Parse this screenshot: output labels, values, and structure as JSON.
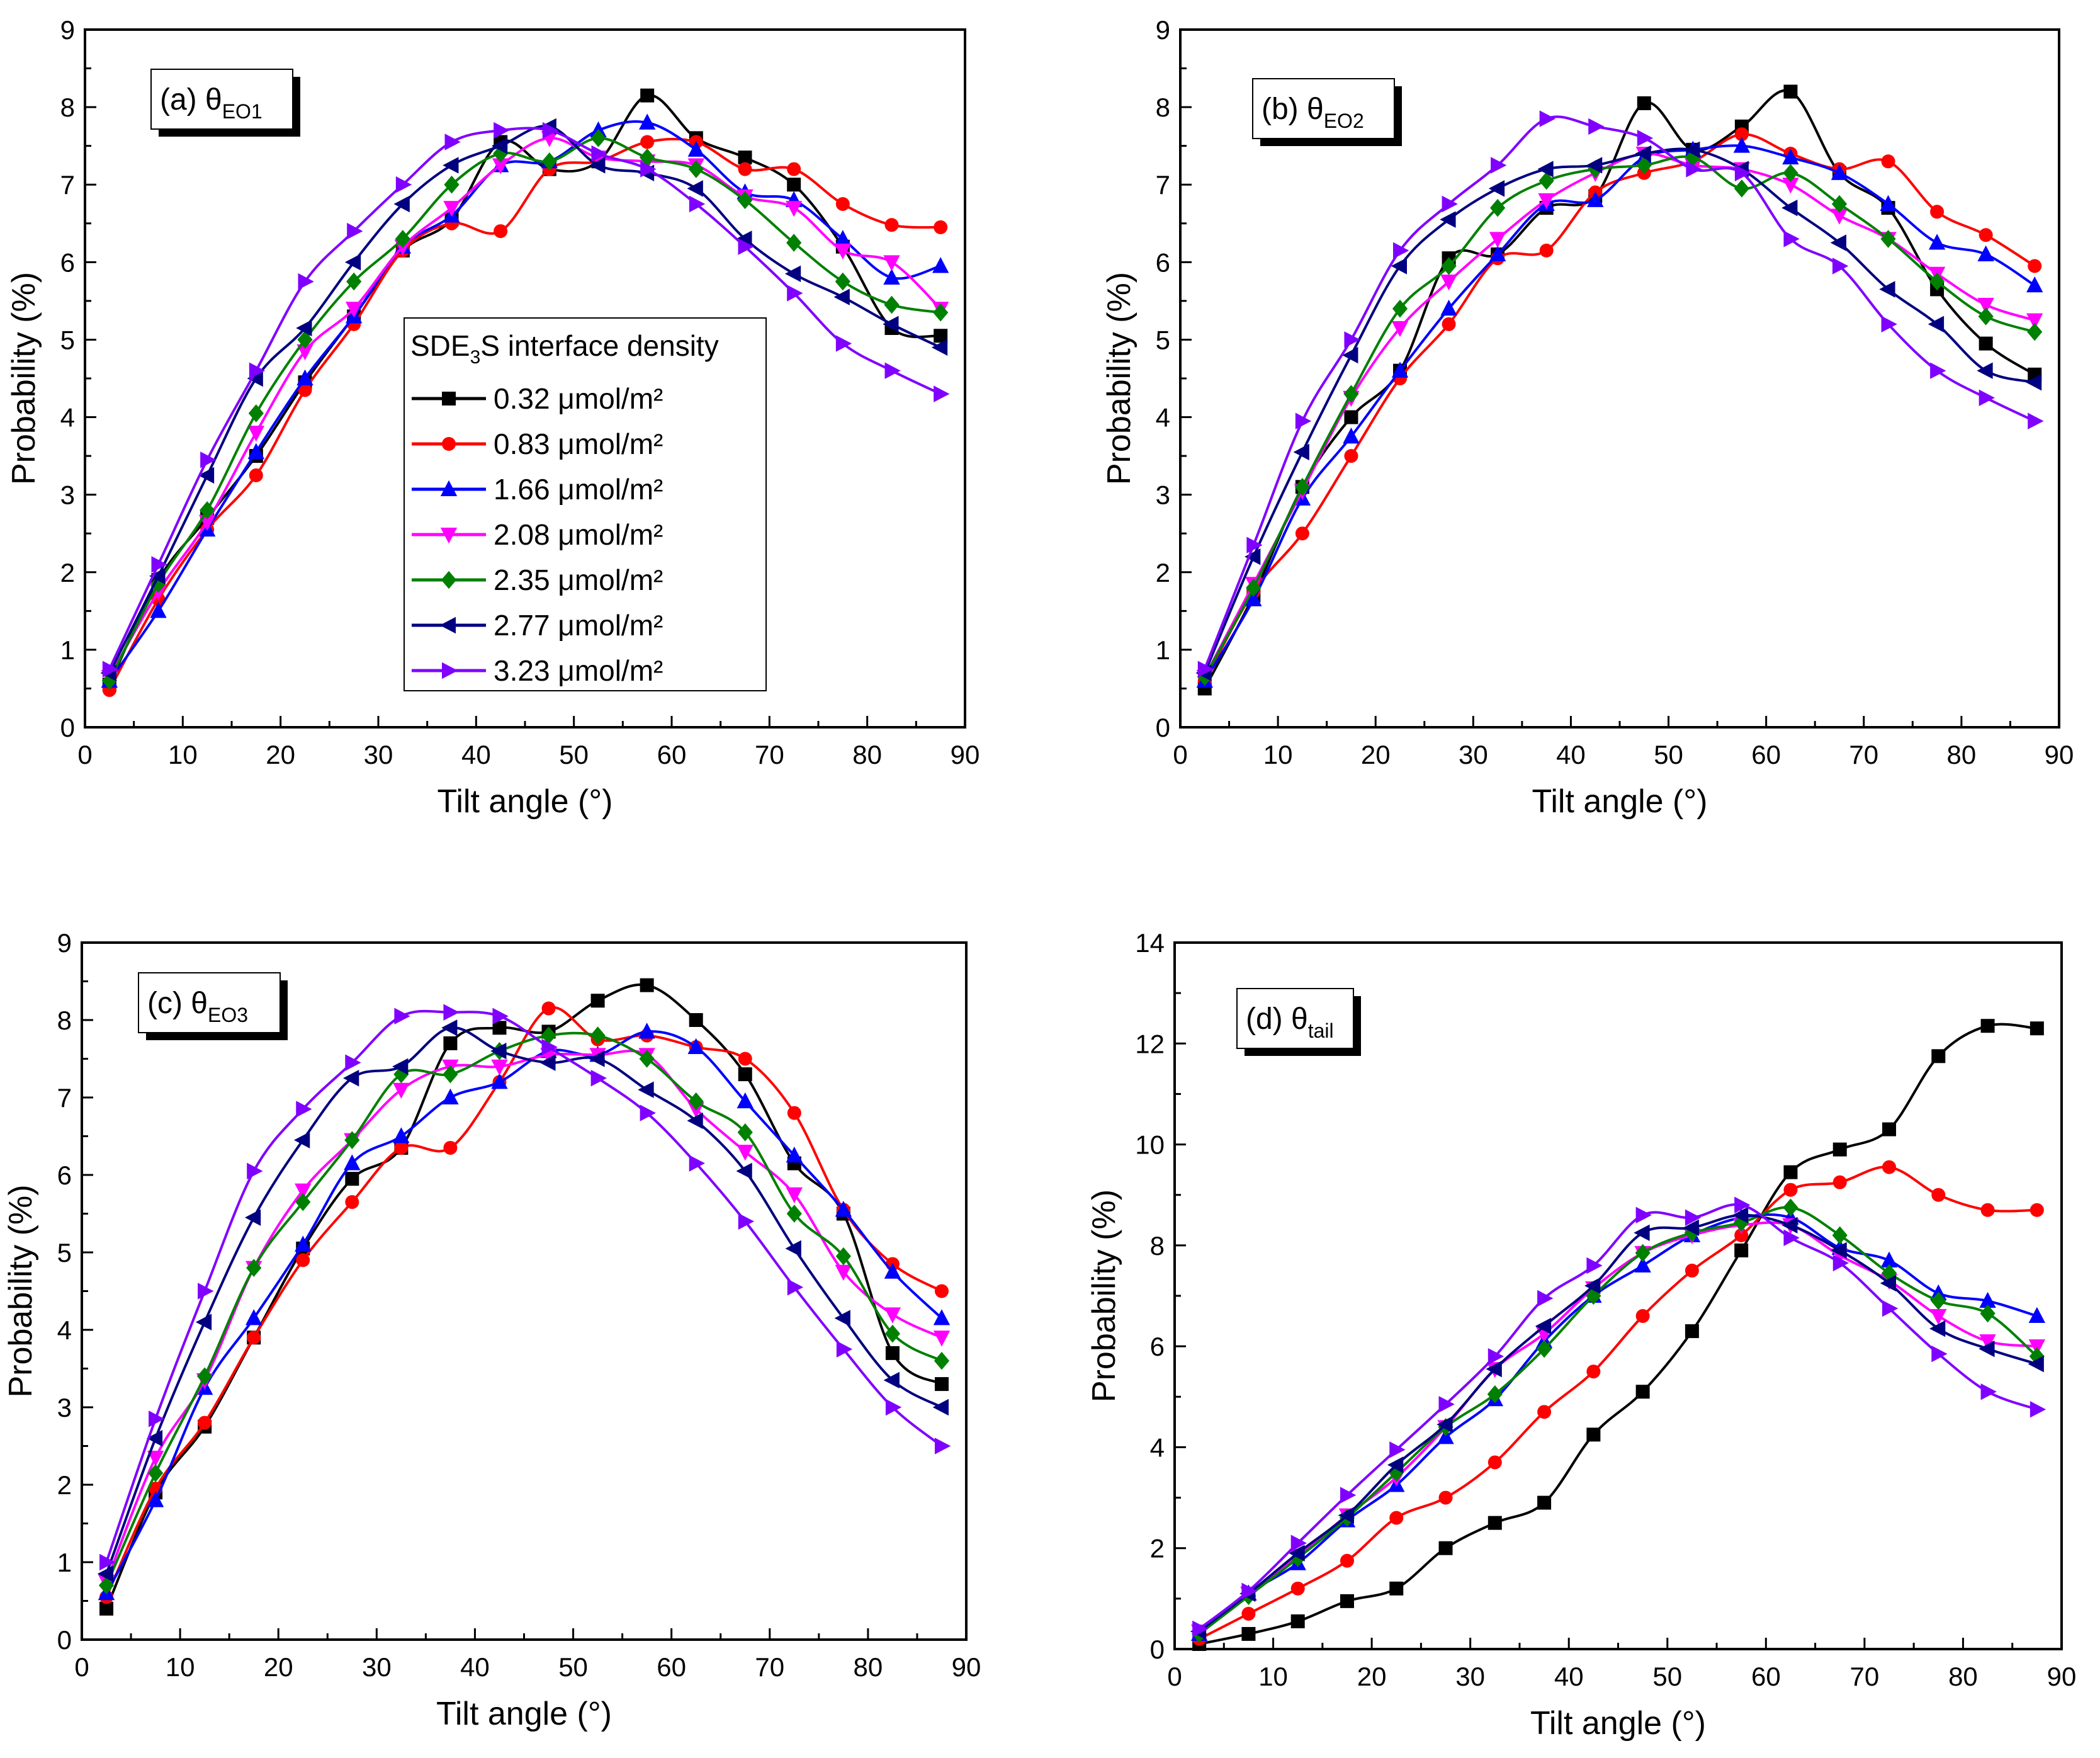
{
  "chart_data": [
    {
      "type": "line",
      "panel_prefix": "(a) θ",
      "panel_sub": "EO1",
      "xlabel": "Tilt angle (°)",
      "ylabel": "Probability (%)",
      "xlim": [
        0,
        90
      ],
      "ylim": [
        0,
        9
      ],
      "xticks": [
        0,
        10,
        20,
        30,
        40,
        50,
        60,
        70,
        80,
        90
      ],
      "yticks": [
        0,
        1,
        2,
        3,
        4,
        5,
        6,
        7,
        8,
        9
      ],
      "x": [
        2.5,
        7.5,
        12.5,
        17.5,
        22.5,
        27.5,
        32.5,
        37.5,
        42.5,
        47.5,
        52.5,
        57.5,
        62.5,
        67.5,
        72.5,
        77.5,
        82.5,
        87.5
      ],
      "legend": {
        "title_prefix": "SDE",
        "title_sub": "3",
        "title_suffix": "S interface density",
        "placement": "center-right"
      },
      "series": [
        {
          "name": "0.32 μmol/m²",
          "values": [
            0.55,
            1.9,
            2.7,
            3.5,
            4.45,
            5.3,
            6.15,
            6.55,
            7.55,
            7.2,
            7.3,
            8.15,
            7.6,
            7.35,
            7.0,
            6.2,
            5.15,
            5.05
          ]
        },
        {
          "name": "0.83 μmol/m²",
          "values": [
            0.48,
            1.65,
            2.55,
            3.25,
            4.35,
            5.2,
            6.15,
            6.5,
            6.4,
            7.2,
            7.3,
            7.55,
            7.55,
            7.2,
            7.2,
            6.75,
            6.48,
            6.45
          ]
        },
        {
          "name": "1.66 μmol/m²",
          "values": [
            0.6,
            1.5,
            2.55,
            3.55,
            4.5,
            5.3,
            6.2,
            6.6,
            7.25,
            7.3,
            7.7,
            7.8,
            7.45,
            6.9,
            6.8,
            6.3,
            5.8,
            5.95
          ]
        },
        {
          "name": "2.08 μmol/m²",
          "values": [
            0.65,
            1.75,
            2.65,
            3.8,
            4.85,
            5.4,
            6.2,
            6.7,
            7.25,
            7.6,
            7.35,
            7.3,
            7.25,
            6.85,
            6.7,
            6.15,
            6.0,
            5.4
          ]
        },
        {
          "name": "2.35 μmol/m²",
          "values": [
            0.6,
            1.85,
            2.8,
            4.05,
            5.0,
            5.75,
            6.3,
            7.0,
            7.4,
            7.3,
            7.6,
            7.35,
            7.2,
            6.8,
            6.25,
            5.75,
            5.45,
            5.35
          ]
        },
        {
          "name": "2.77 μmol/m²",
          "values": [
            0.7,
            1.95,
            3.25,
            4.5,
            5.15,
            6.0,
            6.75,
            7.25,
            7.5,
            7.75,
            7.25,
            7.15,
            6.95,
            6.3,
            5.85,
            5.55,
            5.2,
            4.9
          ]
        },
        {
          "name": "3.23 μmol/m²",
          "values": [
            0.75,
            2.1,
            3.45,
            4.6,
            5.75,
            6.4,
            7.0,
            7.55,
            7.7,
            7.7,
            7.4,
            7.2,
            6.75,
            6.2,
            5.6,
            4.95,
            4.6,
            4.3
          ]
        }
      ]
    },
    {
      "type": "line",
      "panel_prefix": "(b) θ",
      "panel_sub": "EO2",
      "xlabel": "Tilt angle (°)",
      "ylabel": "Probability (%)",
      "xlim": [
        0,
        90
      ],
      "ylim": [
        0,
        9
      ],
      "xticks": [
        0,
        10,
        20,
        30,
        40,
        50,
        60,
        70,
        80,
        90
      ],
      "yticks": [
        0,
        1,
        2,
        3,
        4,
        5,
        6,
        7,
        8,
        9
      ],
      "x": [
        2.5,
        7.5,
        12.5,
        17.5,
        22.5,
        27.5,
        32.5,
        37.5,
        42.5,
        47.5,
        52.5,
        57.5,
        62.5,
        67.5,
        72.5,
        77.5,
        82.5,
        87.5
      ],
      "series": [
        {
          "name": "0.32 μmol/m²",
          "values": [
            0.5,
            1.7,
            3.1,
            4.0,
            4.6,
            6.05,
            6.1,
            6.7,
            6.85,
            8.05,
            7.45,
            7.75,
            8.2,
            7.15,
            6.7,
            5.65,
            4.95,
            4.55
          ]
        },
        {
          "name": "0.83 μmol/m²",
          "values": [
            0.6,
            1.75,
            2.5,
            3.5,
            4.5,
            5.2,
            6.05,
            6.15,
            6.9,
            7.15,
            7.3,
            7.65,
            7.4,
            7.2,
            7.3,
            6.65,
            6.35,
            5.95
          ]
        },
        {
          "name": "1.66 μmol/m²",
          "values": [
            0.6,
            1.65,
            2.95,
            3.75,
            4.6,
            5.4,
            6.1,
            6.75,
            6.8,
            7.35,
            7.45,
            7.5,
            7.35,
            7.15,
            6.75,
            6.25,
            6.1,
            5.7
          ]
        },
        {
          "name": "2.08 μmol/m²",
          "values": [
            0.65,
            1.85,
            3.05,
            4.25,
            5.15,
            5.75,
            6.3,
            6.8,
            7.15,
            7.4,
            7.25,
            7.2,
            7.0,
            6.6,
            6.3,
            5.85,
            5.45,
            5.25
          ]
        },
        {
          "name": "2.35 μmol/m²",
          "values": [
            0.65,
            1.8,
            3.1,
            4.3,
            5.4,
            5.95,
            6.7,
            7.05,
            7.2,
            7.25,
            7.35,
            6.95,
            7.15,
            6.75,
            6.3,
            5.75,
            5.3,
            5.1
          ]
        },
        {
          "name": "2.77 μmol/m²",
          "values": [
            0.7,
            2.2,
            3.55,
            4.8,
            5.95,
            6.55,
            6.95,
            7.2,
            7.25,
            7.4,
            7.45,
            7.2,
            6.7,
            6.25,
            5.65,
            5.2,
            4.6,
            4.45
          ]
        },
        {
          "name": "3.23 μmol/m²",
          "values": [
            0.75,
            2.35,
            3.95,
            5.0,
            6.15,
            6.75,
            7.25,
            7.85,
            7.75,
            7.6,
            7.2,
            7.15,
            6.3,
            5.95,
            5.2,
            4.6,
            4.25,
            3.95
          ]
        }
      ]
    },
    {
      "type": "line",
      "panel_prefix": "(c) θ",
      "panel_sub": "EO3",
      "xlabel": "Tilt angle (°)",
      "ylabel": "Probability (%)",
      "xlim": [
        0,
        90
      ],
      "ylim": [
        0,
        9
      ],
      "xticks": [
        0,
        10,
        20,
        30,
        40,
        50,
        60,
        70,
        80,
        90
      ],
      "yticks": [
        0,
        1,
        2,
        3,
        4,
        5,
        6,
        7,
        8,
        9
      ],
      "x": [
        2.5,
        7.5,
        12.5,
        17.5,
        22.5,
        27.5,
        32.5,
        37.5,
        42.5,
        47.5,
        52.5,
        57.5,
        62.5,
        67.5,
        72.5,
        77.5,
        82.5,
        87.5
      ],
      "series": [
        {
          "name": "0.32 μmol/m²",
          "values": [
            0.4,
            1.9,
            2.75,
            3.9,
            5.05,
            5.95,
            6.35,
            7.7,
            7.9,
            7.85,
            8.25,
            8.45,
            8.0,
            7.3,
            6.15,
            5.5,
            3.7,
            3.3
          ]
        },
        {
          "name": "0.83 μmol/m²",
          "values": [
            0.55,
            1.95,
            2.8,
            3.9,
            4.9,
            5.65,
            6.35,
            6.35,
            7.2,
            8.15,
            7.75,
            7.8,
            7.65,
            7.5,
            6.8,
            5.55,
            4.85,
            4.5
          ]
        },
        {
          "name": "1.66 μmol/m²",
          "values": [
            0.6,
            1.8,
            3.25,
            4.15,
            5.1,
            6.15,
            6.5,
            7.0,
            7.2,
            7.6,
            7.55,
            7.85,
            7.65,
            6.95,
            6.25,
            5.55,
            4.75,
            4.15
          ]
        },
        {
          "name": "2.08 μmol/m²",
          "values": [
            0.75,
            2.35,
            3.35,
            4.8,
            5.8,
            6.45,
            7.1,
            7.4,
            7.4,
            7.55,
            7.55,
            7.55,
            6.85,
            6.3,
            5.75,
            4.75,
            4.2,
            3.9
          ]
        },
        {
          "name": "2.35 μmol/m²",
          "values": [
            0.7,
            2.15,
            3.4,
            4.8,
            5.65,
            6.45,
            7.3,
            7.3,
            7.6,
            7.8,
            7.8,
            7.5,
            6.95,
            6.55,
            5.5,
            4.95,
            3.95,
            3.6
          ]
        },
        {
          "name": "2.77 μmol/m²",
          "values": [
            0.85,
            2.6,
            4.1,
            5.45,
            6.45,
            7.25,
            7.4,
            7.9,
            7.6,
            7.45,
            7.5,
            7.1,
            6.7,
            6.05,
            5.05,
            4.15,
            3.35,
            3.0
          ]
        },
        {
          "name": "3.23 μmol/m²",
          "values": [
            1.0,
            2.85,
            4.5,
            6.05,
            6.85,
            7.45,
            8.05,
            8.1,
            8.05,
            7.65,
            7.25,
            6.8,
            6.15,
            5.4,
            4.55,
            3.75,
            3.0,
            2.5
          ]
        }
      ]
    },
    {
      "type": "line",
      "panel_prefix": "(d) θ",
      "panel_sub": "tail",
      "xlabel": "Tilt angle (°)",
      "ylabel": "Probability (%)",
      "xlim": [
        0,
        90
      ],
      "ylim": [
        0,
        14
      ],
      "xticks": [
        0,
        10,
        20,
        30,
        40,
        50,
        60,
        70,
        80,
        90
      ],
      "yticks": [
        0,
        2,
        4,
        6,
        8,
        10,
        12,
        14
      ],
      "x": [
        2.5,
        7.5,
        12.5,
        17.5,
        22.5,
        27.5,
        32.5,
        37.5,
        42.5,
        47.5,
        52.5,
        57.5,
        62.5,
        67.5,
        72.5,
        77.5,
        82.5,
        87.5
      ],
      "series": [
        {
          "name": "0.32 μmol/m²",
          "values": [
            0.1,
            0.3,
            0.55,
            0.95,
            1.2,
            2.0,
            2.5,
            2.9,
            4.25,
            5.1,
            6.3,
            7.9,
            9.45,
            9.9,
            10.3,
            11.75,
            12.35,
            12.3
          ]
        },
        {
          "name": "0.83 μmol/m²",
          "values": [
            0.2,
            0.7,
            1.2,
            1.75,
            2.6,
            3.0,
            3.7,
            4.7,
            5.5,
            6.6,
            7.5,
            8.2,
            9.1,
            9.25,
            9.55,
            9.0,
            8.7,
            8.7
          ]
        },
        {
          "name": "1.66 μmol/m²",
          "values": [
            0.3,
            1.1,
            1.7,
            2.55,
            3.25,
            4.2,
            4.95,
            6.1,
            7.0,
            7.6,
            8.2,
            8.55,
            8.55,
            7.95,
            7.7,
            7.05,
            6.9,
            6.6
          ]
        },
        {
          "name": "2.08 μmol/m²",
          "values": [
            0.35,
            1.1,
            1.85,
            2.65,
            3.4,
            4.4,
            5.55,
            6.25,
            7.15,
            7.85,
            8.2,
            8.4,
            8.4,
            7.8,
            7.3,
            6.6,
            6.1,
            6.0
          ]
        },
        {
          "name": "2.35 μmol/m²",
          "values": [
            0.3,
            1.05,
            1.8,
            2.6,
            3.5,
            4.4,
            5.05,
            5.95,
            7.0,
            7.85,
            8.25,
            8.45,
            8.75,
            8.2,
            7.45,
            6.9,
            6.65,
            5.8
          ]
        },
        {
          "name": "2.77 μmol/m²",
          "values": [
            0.35,
            1.1,
            1.9,
            2.65,
            3.65,
            4.45,
            5.55,
            6.4,
            7.2,
            8.25,
            8.35,
            8.6,
            8.4,
            7.9,
            7.25,
            6.35,
            5.95,
            5.65
          ]
        },
        {
          "name": "3.23 μmol/m²",
          "values": [
            0.4,
            1.15,
            2.1,
            3.05,
            3.95,
            4.85,
            5.8,
            6.95,
            7.6,
            8.6,
            8.55,
            8.8,
            8.15,
            7.65,
            6.75,
            5.85,
            5.1,
            4.75
          ]
        }
      ]
    }
  ],
  "series_styles": [
    {
      "color": "#000000",
      "marker": "square"
    },
    {
      "color": "#ff0000",
      "marker": "circle"
    },
    {
      "color": "#0000ff",
      "marker": "triangle-up"
    },
    {
      "color": "#ff00ff",
      "marker": "triangle-down"
    },
    {
      "color": "#008000",
      "marker": "diamond"
    },
    {
      "color": "#000080",
      "marker": "triangle-left"
    },
    {
      "color": "#8000ff",
      "marker": "triangle-right"
    }
  ]
}
